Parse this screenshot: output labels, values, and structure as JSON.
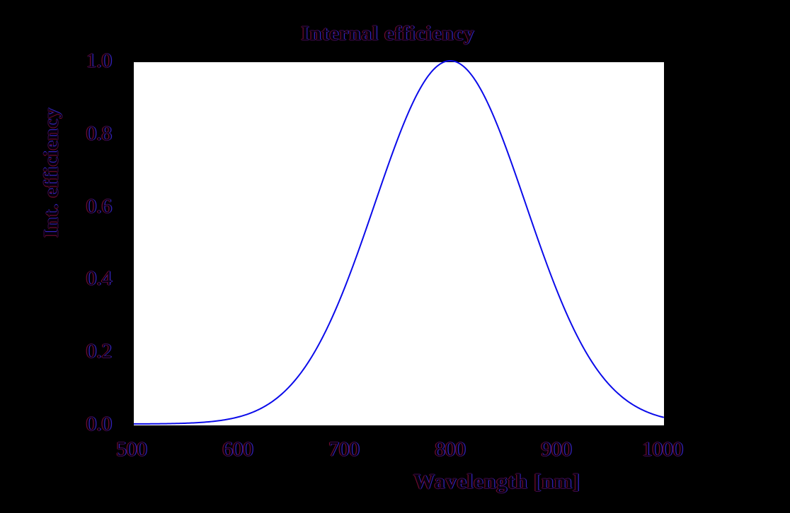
{
  "figure": {
    "background_color": "#000000",
    "plot_background_color": "#ffffff",
    "text_core_color": "#07000d",
    "text_fringe_red": "#6e0b2e",
    "text_fringe_blue": "#3323bb"
  },
  "chart_data": {
    "type": "line",
    "title": "Internal efficiency",
    "xlabel": "Wavelength [nm]",
    "ylabel": "Int. efficiency",
    "xlim": [
      500,
      1000
    ],
    "ylim": [
      0.0,
      1.0
    ],
    "x_tick_values": [
      500,
      600,
      700,
      800,
      900,
      1000
    ],
    "x_tick_labels": [
      "500",
      "600",
      "700",
      "800",
      "900",
      "1000"
    ],
    "y_tick_values": [
      1.0,
      0.8,
      0.6,
      0.4,
      0.2,
      0.0
    ],
    "y_tick_labels": [
      "1.0",
      "0.8",
      "0.6",
      "0.4",
      "0.2",
      "0.0"
    ],
    "grid": false,
    "legend": "none",
    "line_color": "#0b0bea",
    "line_width": 2,
    "curve_model": {
      "shape": "gaussian",
      "peak_wavelength_nm": 800,
      "sigma_nm": 71,
      "peak_value": 1.0
    },
    "series": [
      {
        "name": "Internal efficiency",
        "x": [
          500,
          510,
          520,
          530,
          540,
          550,
          560,
          570,
          580,
          590,
          600,
          610,
          620,
          630,
          640,
          650,
          660,
          670,
          680,
          690,
          700,
          710,
          720,
          730,
          740,
          750,
          760,
          770,
          780,
          790,
          800,
          810,
          820,
          830,
          840,
          850,
          860,
          870,
          880,
          890,
          900,
          910,
          920,
          930,
          940,
          950,
          960,
          970,
          980,
          990,
          1000
        ],
        "y": [
          0.0,
          0.0,
          0.0,
          0.001,
          0.001,
          0.002,
          0.003,
          0.005,
          0.008,
          0.013,
          0.019,
          0.028,
          0.04,
          0.057,
          0.079,
          0.107,
          0.143,
          0.187,
          0.24,
          0.301,
          0.371,
          0.448,
          0.53,
          0.615,
          0.7,
          0.78,
          0.853,
          0.915,
          0.961,
          0.99,
          1.0,
          0.99,
          0.961,
          0.915,
          0.853,
          0.78,
          0.7,
          0.615,
          0.53,
          0.448,
          0.371,
          0.301,
          0.24,
          0.187,
          0.143,
          0.107,
          0.079,
          0.057,
          0.04,
          0.028,
          0.019
        ]
      }
    ]
  }
}
